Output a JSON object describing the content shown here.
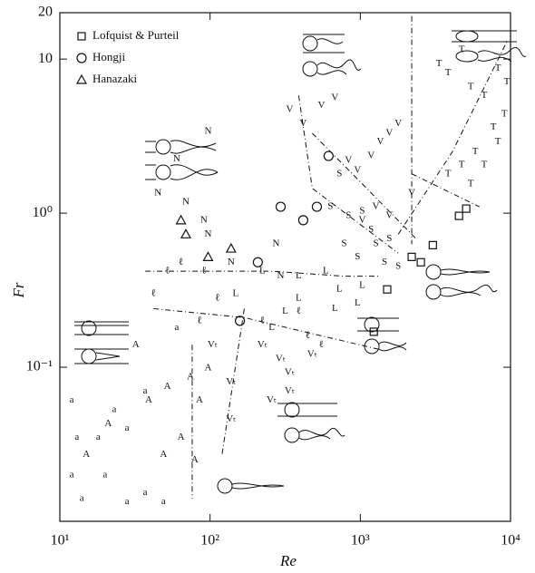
{
  "chart_data": {
    "type": "scatter",
    "xlabel": "Re",
    "ylabel": "Fr",
    "xscale": "log",
    "yscale": "log",
    "xlim": [
      10,
      10000
    ],
    "ylim": [
      0.01,
      20
    ],
    "xticks": [
      {
        "value": 10,
        "label": "10¹"
      },
      {
        "value": 100,
        "label": "10²"
      },
      {
        "value": 1000,
        "label": "10³"
      },
      {
        "value": 10000,
        "label": "10⁴"
      }
    ],
    "yticks": [
      {
        "value": 0.1,
        "label": "10⁻¹"
      },
      {
        "value": 1,
        "label": "10⁰"
      },
      10,
      20
    ],
    "legend": "upper left",
    "color": "#111111",
    "series": [
      {
        "name": "Lofquist & Purteil",
        "marker": "square",
        "x": [
          1230,
          1510,
          2200,
          2530,
          3040,
          5070,
          4540
        ],
        "values": [
          0.17,
          0.32,
          0.52,
          0.48,
          0.62,
          1.07,
          0.96
        ]
      },
      {
        "name": "Hongji",
        "marker": "circle",
        "x": [
          615,
          417,
          295,
          208,
          158,
          514
        ],
        "values": [
          2.35,
          0.9,
          1.1,
          0.48,
          0.2,
          1.1
        ]
      },
      {
        "name": "Hanazaki",
        "marker": "triangle",
        "x": [
          64,
          97,
          138,
          69
        ],
        "values": [
          0.9,
          0.52,
          0.59,
          0.73
        ]
      }
    ],
    "regimes": [
      {
        "marker": "N",
        "x": [
          97,
          60,
          45,
          69,
          91,
          97,
          138,
          295,
          275
        ],
        "values": [
          3.4,
          2.25,
          1.35,
          1.18,
          0.9,
          0.73,
          0.48,
          0.39,
          0.63
        ]
      },
      {
        "marker": "V",
        "x": [
          339,
          417,
          551,
          678,
          835,
          959,
          1180,
          1360,
          1560,
          1790,
          2200,
          1560,
          1270,
          1030
        ],
        "values": [
          4.7,
          3.8,
          5.0,
          5.6,
          2.2,
          1.9,
          2.35,
          2.9,
          3.3,
          3.8,
          1.35,
          0.96,
          1.1,
          0.9
        ]
      },
      {
        "marker": "T",
        "x": [
          3340,
          3840,
          4730,
          5430,
          6680,
          8240,
          9460,
          9100,
          7690,
          5820,
          4730,
          3840,
          5430,
          6680,
          8240
        ],
        "values": [
          9.3,
          8.1,
          11.5,
          6.6,
          5.8,
          8.7,
          7.1,
          4.4,
          3.6,
          2.5,
          2.05,
          1.8,
          1.55,
          2.05,
          2.9
        ]
      },
      {
        "marker": "S",
        "x": [
          726,
          632,
          835,
          1030,
          1180,
          1270,
          1560,
          1450,
          1790,
          959,
          780
        ],
        "values": [
          1.8,
          1.1,
          0.96,
          1.03,
          0.78,
          0.63,
          0.68,
          0.48,
          0.45,
          0.52,
          0.63
        ]
      },
      {
        "marker": "L",
        "x": [
          223,
          389,
          590,
          726,
          1030,
          959,
          678,
          389,
          316,
          148,
          257
        ],
        "values": [
          0.42,
          0.39,
          0.42,
          0.32,
          0.34,
          0.26,
          0.24,
          0.28,
          0.23,
          0.3,
          0.18
        ]
      },
      {
        "marker": "ℓ",
        "x": [
          52,
          91,
          42,
          112,
          389,
          223,
          85,
          447,
          551,
          64
        ],
        "values": [
          0.42,
          0.42,
          0.3,
          0.28,
          0.23,
          0.2,
          0.2,
          0.16,
          0.14,
          0.48
        ]
      },
      {
        "marker": "Vₜ",
        "x": [
          223,
          295,
          339,
          257,
          339,
          138,
          138,
          104,
          479
        ],
        "values": [
          0.14,
          0.113,
          0.092,
          0.061,
          0.07,
          0.08,
          0.046,
          0.14,
          0.121
        ]
      },
      {
        "marker": "A",
        "x": [
          52,
          39,
          74,
          85,
          64,
          49,
          79,
          21,
          15,
          32,
          97
        ],
        "values": [
          0.075,
          0.061,
          0.086,
          0.061,
          0.035,
          0.027,
          0.025,
          0.043,
          0.027,
          0.14,
          0.099
        ]
      },
      {
        "marker": "a",
        "x": [
          12,
          13,
          12,
          14,
          18,
          28,
          28,
          23,
          37,
          49,
          60,
          37,
          20
        ],
        "values": [
          0.061,
          0.035,
          0.02,
          0.014,
          0.035,
          0.04,
          0.0134,
          0.053,
          0.07,
          0.0134,
          0.18,
          0.0153,
          0.02
        ]
      }
    ],
    "boundaries": [
      {
        "x": [
          37,
          257,
          780,
          1360
        ],
        "values": [
          0.42,
          0.42,
          0.39,
          0.39
        ]
      },
      {
        "x": [
          42,
          169,
          1360
        ],
        "values": [
          0.24,
          0.21,
          0.13
        ]
      },
      {
        "x": [
          76,
          76
        ],
        "values": [
          0.14,
          0.014
        ]
      },
      {
        "x": [
          169,
          120
        ],
        "values": [
          0.24,
          0.027
        ]
      },
      {
        "x": [
          389,
          479,
          1790
        ],
        "values": [
          5.8,
          1.45,
          0.55
        ]
      },
      {
        "x": [
          479,
          1030,
          2360
        ],
        "values": [
          3.3,
          1.55,
          0.68
        ]
      },
      {
        "x": [
          2200,
          2200
        ],
        "values": [
          19,
          0.63
        ]
      },
      {
        "x": [
          2200,
          6210
        ],
        "values": [
          1.8,
          1.1
        ]
      },
      {
        "x": [
          1790,
          4100,
          9460
        ],
        "values": [
          0.73,
          2.5,
          13
        ]
      }
    ]
  }
}
